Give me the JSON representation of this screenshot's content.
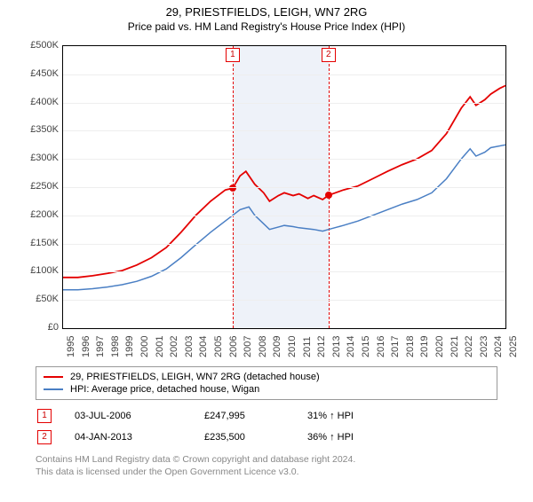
{
  "title": "29, PRIESTFIELDS, LEIGH, WN7 2RG",
  "subtitle": "Price paid vs. HM Land Registry's House Price Index (HPI)",
  "chart": {
    "type": "line",
    "background_color": "#ffffff",
    "grid_color": "#eeeeee",
    "shaded_band_color": "#eef2f9",
    "dashed_line_color": "#e40000",
    "x_axis": {
      "min": 1995,
      "max": 2025,
      "tick_step": 1,
      "label_fontsize": 11,
      "label_rotation_deg": -90
    },
    "y_axis": {
      "min": 0,
      "max": 500000,
      "tick_step": 50000,
      "label_prefix": "£",
      "label_suffix": "K",
      "label_fontsize": 11
    },
    "series": [
      {
        "id": "price_paid",
        "label": "29, PRIESTFIELDS, LEIGH, WN7 2RG (detached house)",
        "color": "#e40000",
        "line_width": 1.8,
        "points_y_by_year": {
          "1995": 90000,
          "1996": 90000,
          "1997": 93000,
          "1998": 97000,
          "1999": 102000,
          "2000": 112000,
          "2001": 125000,
          "2002": 143000,
          "2003": 170000,
          "2004": 200000,
          "2005": 225000,
          "2006": 245000,
          "2006.5": 247995,
          "2007": 270000,
          "2007.4": 278000,
          "2008": 255000,
          "2008.6": 240000,
          "2009": 225000,
          "2009.6": 235000,
          "2010": 240000,
          "2010.6": 235000,
          "2011": 238000,
          "2011.6": 230000,
          "2012": 235000,
          "2012.6": 228000,
          "2013": 235500,
          "2014": 245000,
          "2015": 252000,
          "2016": 265000,
          "2017": 278000,
          "2018": 290000,
          "2019": 300000,
          "2020": 315000,
          "2021": 345000,
          "2022": 390000,
          "2022.6": 410000,
          "2023": 395000,
          "2023.6": 405000,
          "2024": 415000,
          "2024.6": 425000,
          "2025": 430000
        }
      },
      {
        "id": "hpi",
        "label": "HPI: Average price, detached house, Wigan",
        "color": "#4a7fc4",
        "line_width": 1.5,
        "points_y_by_year": {
          "1995": 68000,
          "1996": 68000,
          "1997": 70000,
          "1998": 73000,
          "1999": 77000,
          "2000": 83000,
          "2001": 92000,
          "2002": 105000,
          "2003": 125000,
          "2004": 148000,
          "2005": 170000,
          "2006": 190000,
          "2007": 210000,
          "2007.6": 215000,
          "2008": 200000,
          "2008.6": 185000,
          "2009": 175000,
          "2010": 182000,
          "2010.6": 180000,
          "2011": 178000,
          "2012": 175000,
          "2012.6": 172000,
          "2013": 175000,
          "2014": 182000,
          "2015": 190000,
          "2016": 200000,
          "2017": 210000,
          "2018": 220000,
          "2019": 228000,
          "2020": 240000,
          "2021": 265000,
          "2022": 300000,
          "2022.6": 318000,
          "2023": 305000,
          "2023.6": 312000,
          "2024": 320000,
          "2025": 325000
        }
      }
    ],
    "shaded_band": {
      "x_start": 2006.5,
      "x_end": 2013.0
    },
    "markers": [
      {
        "idx": "1",
        "x": 2006.5,
        "y": 247995
      },
      {
        "idx": "2",
        "x": 2013.0,
        "y": 235500
      }
    ],
    "marker_box_color": "#e40000",
    "point_color": "#e40000"
  },
  "legend": {
    "rows": [
      {
        "color": "#e40000",
        "label": "29, PRIESTFIELDS, LEIGH, WN7 2RG (detached house)"
      },
      {
        "color": "#4a7fc4",
        "label": "HPI: Average price, detached house, Wigan"
      }
    ]
  },
  "transactions": [
    {
      "idx": "1",
      "date": "03-JUL-2006",
      "price": "£247,995",
      "pct": "31% ↑ HPI"
    },
    {
      "idx": "2",
      "date": "04-JAN-2013",
      "price": "£235,500",
      "pct": "36% ↑ HPI"
    }
  ],
  "footnote_l1": "Contains HM Land Registry data © Crown copyright and database right 2024.",
  "footnote_l2": "This data is licensed under the Open Government Licence v3.0."
}
